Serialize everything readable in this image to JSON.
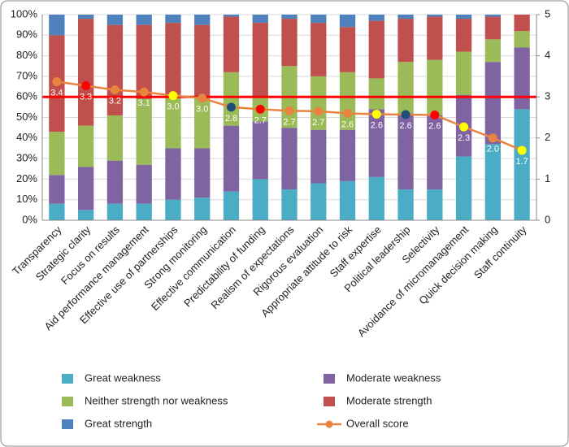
{
  "chart_data": {
    "type": "stacked_bar_line",
    "categories": [
      "Transparency",
      "Strategic clarity",
      "Focus on results",
      "Aid performance management",
      "Effective use of partnerships",
      "Strong monitoring",
      "Effective communication",
      "Predictability of funding",
      "Realism of expectations",
      "Rigorous evaluation",
      "Appropriate attitude to risk",
      "Staff expertise",
      "Political leadership",
      "Selectivity",
      "Avoidance of micromanagement",
      "Quick decision making",
      "Staff continuity"
    ],
    "series": [
      {
        "name": "Great weakness",
        "color": "#4bacc6",
        "values": [
          8,
          5,
          8,
          8,
          10,
          11,
          14,
          20,
          15,
          18,
          19,
          21,
          15,
          15,
          31,
          37,
          54
        ]
      },
      {
        "name": "Moderate weakness",
        "color": "#8064a2",
        "values": [
          14,
          21,
          21,
          19,
          25,
          24,
          32,
          28,
          30,
          26,
          25,
          33,
          37,
          36,
          30,
          40,
          30
        ]
      },
      {
        "name": "Neither strength nor weakness",
        "color": "#9bbb59",
        "values": [
          21,
          20,
          22,
          32,
          26,
          25,
          26,
          12,
          30,
          26,
          28,
          15,
          25,
          27,
          21,
          11,
          8
        ]
      },
      {
        "name": "Moderate strength",
        "color": "#c0504d",
        "values": [
          47,
          52,
          44,
          36,
          35,
          35,
          27,
          36,
          23,
          26,
          22,
          28,
          21,
          21,
          16,
          11,
          8
        ]
      },
      {
        "name": "Great strength",
        "color": "#4f81bd",
        "values": [
          10,
          2,
          5,
          5,
          4,
          5,
          1,
          4,
          2,
          4,
          6,
          3,
          2,
          1,
          2,
          1,
          0
        ]
      },
      {
        "name": "Overall score",
        "color": "#e8843f",
        "axis": "y2",
        "values": [
          3.37,
          3.27,
          3.17,
          3.12,
          3.03,
          2.97,
          2.75,
          2.7,
          2.66,
          2.65,
          2.6,
          2.58,
          2.57,
          2.56,
          2.27,
          2.0,
          1.7
        ],
        "value_labels": [
          "3.4",
          "3.3",
          "3.2",
          "3.1",
          "3.0",
          "3.0",
          "2.8",
          "2.7",
          "2.7",
          "2.7",
          "2.6",
          "2.6",
          "2.6",
          "2.6",
          "2.3",
          "2.0",
          "1.7"
        ],
        "marker_colors": [
          "#e8843f",
          "#ff0000",
          "#e8843f",
          "#e8843f",
          "#ffff00",
          "#e8843f",
          "#1f4e79",
          "#ff0000",
          "#e8843f",
          "#e8843f",
          "#e8843f",
          "#ffff00",
          "#1f4e79",
          "#ff0000",
          "#ffff00",
          "#e8843f",
          "#ffff00"
        ]
      }
    ],
    "ylim": [
      0,
      100
    ],
    "yticks": [
      {
        "value": 0,
        "label": "0%"
      },
      {
        "value": 10,
        "label": "10%"
      },
      {
        "value": 20,
        "label": "20%"
      },
      {
        "value": 30,
        "label": "30%"
      },
      {
        "value": 40,
        "label": "40%"
      },
      {
        "value": 50,
        "label": "50%"
      },
      {
        "value": 60,
        "label": "60%"
      },
      {
        "value": 70,
        "label": "70%"
      },
      {
        "value": 80,
        "label": "80%"
      },
      {
        "value": 90,
        "label": "90%"
      },
      {
        "value": 100,
        "label": "100%"
      }
    ],
    "y2lim": [
      0,
      5
    ],
    "y2ticks": [
      0,
      1,
      2,
      3,
      4,
      5
    ],
    "reference_line": {
      "value": 60,
      "color": "#ff0000"
    },
    "grid": true,
    "legend": "bottom"
  }
}
